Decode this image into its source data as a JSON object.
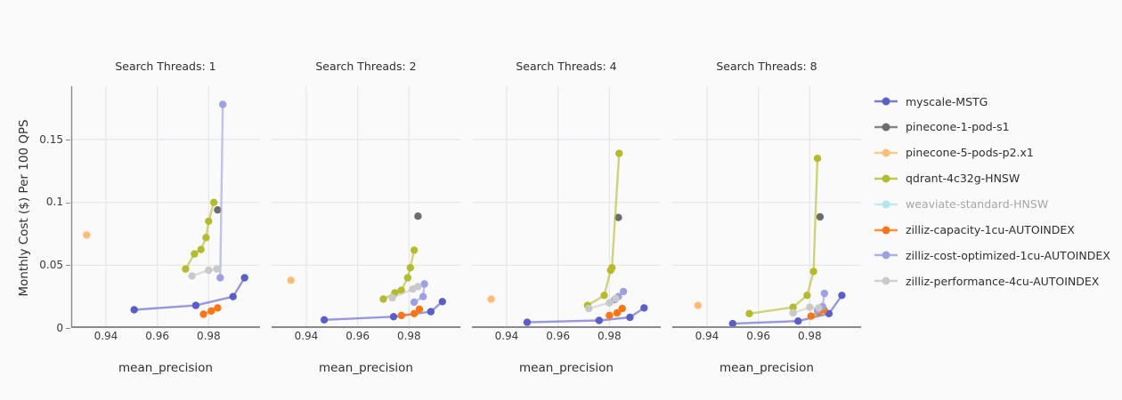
{
  "figure": {
    "background": "#fafafa",
    "grid_color": "#e8e8ec",
    "axis_line_color": "#8a8a8a",
    "text_color": "#2f2f2f",
    "muted_text_color": "#a6a6a6"
  },
  "y_axis": {
    "title": "Monthly Cost ($) Per 100 QPS",
    "tick_labels": [
      "0",
      "0.05",
      "0.1",
      "0.15"
    ],
    "tick_values": [
      0,
      0.05,
      0.1,
      0.15
    ]
  },
  "x_axis": {
    "title": "mean_precision",
    "tick_labels": [
      "0.94",
      "0.96",
      "0.98"
    ],
    "tick_values": [
      0.94,
      0.96,
      0.98
    ]
  },
  "chart_data": {
    "type": "line",
    "xlabel": "mean_precision",
    "ylabel": "Monthly Cost ($) Per 100 QPS",
    "x_range": [
      0.9265,
      1.0
    ],
    "y_range": [
      0,
      0.1925
    ],
    "grid": true,
    "legend_position": "right",
    "series": [
      {
        "name": "myscale-MSTG",
        "color": "#5a5ec6",
        "muted": false
      },
      {
        "name": "pinecone-1-pod-s1",
        "color": "#6d6d6d",
        "muted": false
      },
      {
        "name": "pinecone-5-pods-p2.x1",
        "color": "#ffbb78",
        "muted": false
      },
      {
        "name": "qdrant-4c32g-HNSW",
        "color": "#b4bc2d",
        "muted": false
      },
      {
        "name": "weaviate-standard-HNSW",
        "color": "#79d7e5",
        "muted": true
      },
      {
        "name": "zilliz-capacity-1cu-AUTOINDEX",
        "color": "#fd7514",
        "muted": false
      },
      {
        "name": "zilliz-cost-optimized-1cu-AUTOINDEX",
        "color": "#9da0e2",
        "muted": false
      },
      {
        "name": "zilliz-performance-4cu-AUTOINDEX",
        "color": "#c9c9c9",
        "muted": false
      }
    ],
    "facets": [
      {
        "title": "Search Threads: 1",
        "data": {
          "myscale-MSTG": [
            [
              0.951,
              0.0145
            ],
            [
              0.975,
              0.018
            ],
            [
              0.9895,
              0.025
            ],
            [
              0.994,
              0.04
            ]
          ],
          "pinecone-1-pod-s1": [
            [
              0.9835,
              0.094
            ]
          ],
          "pinecone-5-pods-p2.x1": [
            [
              0.9325,
              0.074
            ]
          ],
          "qdrant-4c32g-HNSW": [
            [
              0.971,
              0.047
            ],
            [
              0.9745,
              0.059
            ],
            [
              0.977,
              0.0625
            ],
            [
              0.979,
              0.072
            ],
            [
              0.98,
              0.085
            ],
            [
              0.982,
              0.1
            ]
          ],
          "weaviate-standard-HNSW": [],
          "zilliz-capacity-1cu-AUTOINDEX": [
            [
              0.978,
              0.011
            ],
            [
              0.981,
              0.0135
            ],
            [
              0.9835,
              0.016
            ]
          ],
          "zilliz-cost-optimized-1cu-AUTOINDEX": [
            [
              0.9845,
              0.04
            ],
            [
              0.9855,
              0.178
            ]
          ],
          "zilliz-performance-4cu-AUTOINDEX": [
            [
              0.9735,
              0.0415
            ],
            [
              0.98,
              0.046
            ],
            [
              0.9832,
              0.047
            ]
          ]
        }
      },
      {
        "title": "Search Threads: 2",
        "data": {
          "myscale-MSTG": [
            [
              0.947,
              0.0065
            ],
            [
              0.974,
              0.009
            ],
            [
              0.9885,
              0.013
            ],
            [
              0.993,
              0.021
            ]
          ],
          "pinecone-1-pod-s1": [
            [
              0.9835,
              0.089
            ]
          ],
          "pinecone-5-pods-p2.x1": [
            [
              0.934,
              0.038
            ]
          ],
          "qdrant-4c32g-HNSW": [
            [
              0.97,
              0.023
            ],
            [
              0.9745,
              0.028
            ],
            [
              0.977,
              0.03
            ],
            [
              0.9795,
              0.04
            ],
            [
              0.9805,
              0.048
            ],
            [
              0.982,
              0.062
            ]
          ],
          "weaviate-standard-HNSW": [],
          "zilliz-capacity-1cu-AUTOINDEX": [
            [
              0.977,
              0.01
            ],
            [
              0.982,
              0.0115
            ],
            [
              0.984,
              0.015
            ]
          ],
          "zilliz-cost-optimized-1cu-AUTOINDEX": [
            [
              0.982,
              0.0205
            ],
            [
              0.9855,
              0.025
            ],
            [
              0.986,
              0.035
            ]
          ],
          "zilliz-performance-4cu-AUTOINDEX": [
            [
              0.9735,
              0.024
            ],
            [
              0.9815,
              0.031
            ],
            [
              0.9835,
              0.033
            ]
          ]
        }
      },
      {
        "title": "Search Threads: 4",
        "data": {
          "myscale-MSTG": [
            [
              0.948,
              0.0045
            ],
            [
              0.976,
              0.006
            ],
            [
              0.988,
              0.0085
            ],
            [
              0.9935,
              0.016
            ]
          ],
          "pinecone-1-pod-s1": [
            [
              0.9835,
              0.088
            ]
          ],
          "pinecone-5-pods-p2.x1": [
            [
              0.934,
              0.023
            ]
          ],
          "qdrant-4c32g-HNSW": [
            [
              0.9715,
              0.018
            ],
            [
              0.978,
              0.026
            ],
            [
              0.9805,
              0.046
            ],
            [
              0.981,
              0.048
            ],
            [
              0.9838,
              0.139
            ]
          ],
          "weaviate-standard-HNSW": [],
          "zilliz-capacity-1cu-AUTOINDEX": [
            [
              0.98,
              0.01
            ],
            [
              0.983,
              0.012
            ],
            [
              0.985,
              0.0155
            ]
          ],
          "zilliz-cost-optimized-1cu-AUTOINDEX": [
            [
              0.982,
              0.0225
            ],
            [
              0.9835,
              0.025
            ],
            [
              0.9855,
              0.029
            ]
          ],
          "zilliz-performance-4cu-AUTOINDEX": [
            [
              0.972,
              0.0155
            ],
            [
              0.98,
              0.02
            ],
            [
              0.9825,
              0.0235
            ]
          ]
        }
      },
      {
        "title": "Search Threads: 8",
        "data": {
          "myscale-MSTG": [
            [
              0.95,
              0.0035
            ],
            [
              0.9755,
              0.0055
            ],
            [
              0.9875,
              0.0115
            ],
            [
              0.9925,
              0.026
            ]
          ],
          "pinecone-1-pod-s1": [
            [
              0.984,
              0.0885
            ]
          ],
          "pinecone-5-pods-p2.x1": [
            [
              0.9365,
              0.018
            ]
          ],
          "qdrant-4c32g-HNSW": [
            [
              0.9565,
              0.0115
            ],
            [
              0.9735,
              0.0165
            ],
            [
              0.979,
              0.026
            ],
            [
              0.9815,
              0.045
            ],
            [
              0.983,
              0.135
            ]
          ],
          "weaviate-standard-HNSW": [],
          "zilliz-capacity-1cu-AUTOINDEX": [
            [
              0.9805,
              0.0095
            ],
            [
              0.9835,
              0.0125
            ],
            [
              0.9855,
              0.0145
            ]
          ],
          "zilliz-cost-optimized-1cu-AUTOINDEX": [
            [
              0.983,
              0.014
            ],
            [
              0.985,
              0.017
            ],
            [
              0.9857,
              0.0275
            ]
          ],
          "zilliz-performance-4cu-AUTOINDEX": [
            [
              0.9735,
              0.012
            ],
            [
              0.98,
              0.0165
            ],
            [
              0.9835,
              0.016
            ]
          ]
        }
      }
    ]
  }
}
